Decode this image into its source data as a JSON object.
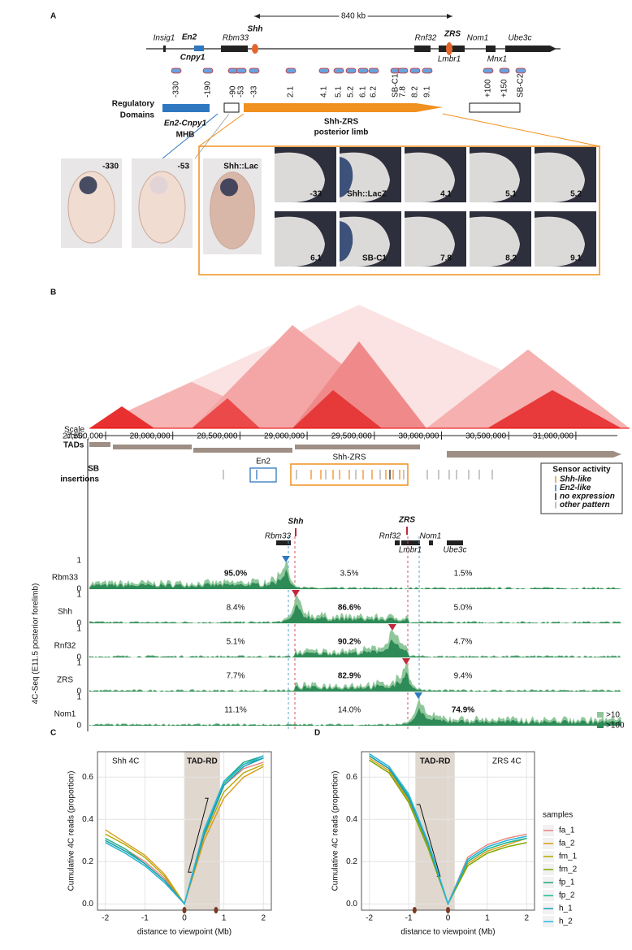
{
  "panel_a": {
    "letter": "A",
    "span": "840 kb",
    "genes": [
      "Insig1",
      "En2",
      "Cnpy1",
      "Rbm33",
      "Shh",
      "Rnf32",
      "ZRS",
      "Lmbr1",
      "Nom1",
      "Mnx1",
      "Ube3c"
    ],
    "insertions": [
      "-330",
      "-190",
      "-90",
      "-53",
      "-33",
      "2.1",
      "4.1",
      "5.1",
      "5.2",
      "6.1",
      "6.2",
      "SB-C1",
      "7.8",
      "8.2",
      "9.1",
      "+100",
      "+150",
      "SB-C2"
    ],
    "domains_label": [
      "Regulatory",
      "Domains"
    ],
    "en2_domain": [
      "En2-Cnpy1",
      "MHB"
    ],
    "shh_domain": [
      "Shh-ZRS",
      "posterior limb"
    ],
    "embryos": [
      "-330",
      "-53",
      "Shh::Lac"
    ],
    "limbs": [
      "-33",
      "Shh::LacZ",
      "4.1",
      "5.1",
      "5.2",
      "6.1",
      "SB-C1",
      "7.8",
      "8.2",
      "9.1"
    ]
  },
  "panel_b": {
    "letter": "B",
    "scale": "Scale",
    "chrom": "chr5:",
    "coords": [
      "27,500,000",
      "28,000,000",
      "28,500,000",
      "29,000,000",
      "29,500,000",
      "30,000,000",
      "30,500,000",
      "31,000,000"
    ],
    "tads": "TADs",
    "sb": [
      "SB",
      "insertions"
    ],
    "en2": "En2",
    "shh_zrs": "Shh-ZRS",
    "legend": {
      "title": "Sensor activity",
      "items": [
        "Shh-like",
        "En2-like",
        "no expression",
        "other pattern"
      ],
      "colors": [
        "#f0901e",
        "#2f78c0",
        "#222222",
        "#aaaaaa"
      ]
    },
    "genes": [
      "Shh",
      "ZRS",
      "Rbm33",
      "Rnf32",
      "Lmbr1",
      "Nom1",
      "Ube3c"
    ],
    "ylabel": "4C-Seq (E11.5 posterior forelimb)",
    "scale_top": "1",
    "scale_bottom": "0",
    "tracks": [
      {
        "name": "Rbm33",
        "pct": [
          "95.0%",
          "3.5%",
          "1.5%"
        ],
        "bold": 0
      },
      {
        "name": "Shh",
        "pct": [
          "8.4%",
          "86.6%",
          "5.0%"
        ],
        "bold": 1
      },
      {
        "name": "Rnf32",
        "pct": [
          "5.1%",
          "90.2%",
          "4.7%"
        ],
        "bold": 1
      },
      {
        "name": "ZRS",
        "pct": [
          "7.7%",
          "82.9%",
          "9.4%"
        ],
        "bold": 1
      },
      {
        "name": "Nom1",
        "pct": [
          "11.1%",
          "14.0%",
          "74.9%"
        ],
        "bold": 2
      }
    ],
    "signal_legend": [
      ">10",
      ">100"
    ]
  },
  "chart_data": [
    {
      "type": "line",
      "panel": "C",
      "annotation": "Shh 4C",
      "band": {
        "x": [
          0,
          0.9
        ],
        "label": "TAD-RD"
      },
      "markers": [
        0,
        0.8
      ],
      "xlabel": "distance to viewpoint (Mb)",
      "ylabel": "Cumulative 4C reads (proportion)",
      "x": [
        -2,
        -1.5,
        -1,
        -0.5,
        0,
        0.5,
        1,
        1.5,
        2
      ],
      "xlim": [
        -2.2,
        2.2
      ],
      "xticks": [
        -2,
        -1,
        0,
        1,
        2
      ],
      "ylim": [
        -0.03,
        0.72
      ],
      "yticks": [
        {
          "value": 0,
          "label": "0.0"
        },
        0.2,
        0.4,
        0.6
      ],
      "grid": true,
      "series": [
        {
          "color": "#e8837a",
          "values": [
            0.31,
            0.26,
            0.2,
            0.12,
            0,
            0.33,
            0.56,
            0.64,
            0.67
          ]
        },
        {
          "color": "#d89a1a",
          "values": [
            0.35,
            0.29,
            0.23,
            0.14,
            0,
            0.3,
            0.5,
            0.6,
            0.65
          ]
        },
        {
          "color": "#b5a800",
          "values": [
            0.33,
            0.28,
            0.22,
            0.13,
            0,
            0.32,
            0.53,
            0.62,
            0.66
          ]
        },
        {
          "color": "#7ea800",
          "values": [
            0.3,
            0.25,
            0.19,
            0.11,
            0,
            0.34,
            0.57,
            0.66,
            0.7
          ]
        },
        {
          "color": "#1aa37a",
          "values": [
            0.29,
            0.24,
            0.18,
            0.1,
            0,
            0.35,
            0.58,
            0.67,
            0.7
          ]
        },
        {
          "color": "#1db88e",
          "values": [
            0.31,
            0.26,
            0.19,
            0.11,
            0,
            0.34,
            0.57,
            0.66,
            0.69
          ]
        },
        {
          "color": "#1a9db5",
          "values": [
            0.3,
            0.25,
            0.19,
            0.11,
            0,
            0.33,
            0.56,
            0.65,
            0.69
          ]
        },
        {
          "color": "#29b6e0",
          "values": [
            0.29,
            0.24,
            0.18,
            0.1,
            0,
            0.35,
            0.58,
            0.66,
            0.7
          ]
        }
      ]
    },
    {
      "type": "line",
      "panel": "D",
      "annotation": "ZRS 4C",
      "band": {
        "x": [
          -0.83,
          0.17
        ],
        "label": "TAD-RD"
      },
      "markers": [
        0,
        -0.85
      ],
      "xlabel": "distance to viewpoint (Mb)",
      "ylabel": "Cumulative 4C reads (proportion)",
      "x": [
        -2,
        -1.5,
        -1,
        -0.5,
        0,
        0.5,
        1,
        1.5,
        2
      ],
      "xlim": [
        -2.2,
        2.2
      ],
      "xticks": [
        -2,
        -1,
        0,
        1,
        2
      ],
      "ylim": [
        -0.03,
        0.72
      ],
      "yticks": [
        {
          "value": 0,
          "label": "0.0"
        },
        0.2,
        0.4,
        0.6
      ],
      "grid": true,
      "legend_title": "samples",
      "series": [
        {
          "name": "fa_1",
          "color": "#e8837a",
          "values": [
            0.7,
            0.64,
            0.5,
            0.28,
            0,
            0.22,
            0.28,
            0.31,
            0.33
          ]
        },
        {
          "name": "fa_2",
          "color": "#d89a1a",
          "values": [
            0.69,
            0.63,
            0.49,
            0.27,
            0,
            0.19,
            0.25,
            0.28,
            0.31
          ]
        },
        {
          "name": "fm_1",
          "color": "#b5a800",
          "values": [
            0.68,
            0.62,
            0.48,
            0.27,
            0,
            0.18,
            0.24,
            0.27,
            0.29
          ]
        },
        {
          "name": "fm_2",
          "color": "#7ea800",
          "values": [
            0.68,
            0.62,
            0.48,
            0.26,
            0,
            0.18,
            0.24,
            0.27,
            0.29
          ]
        },
        {
          "name": "fp_1",
          "color": "#1aa37a",
          "values": [
            0.7,
            0.64,
            0.51,
            0.28,
            0,
            0.2,
            0.26,
            0.29,
            0.31
          ]
        },
        {
          "name": "fp_2",
          "color": "#1db88e",
          "values": [
            0.71,
            0.65,
            0.51,
            0.29,
            0,
            0.2,
            0.26,
            0.29,
            0.31
          ]
        },
        {
          "name": "h_1",
          "color": "#1a9db5",
          "values": [
            0.7,
            0.64,
            0.5,
            0.28,
            0,
            0.21,
            0.27,
            0.3,
            0.32
          ]
        },
        {
          "name": "h_2",
          "color": "#29b6e0",
          "values": [
            0.71,
            0.65,
            0.52,
            0.29,
            0,
            0.21,
            0.27,
            0.3,
            0.32
          ]
        }
      ]
    }
  ]
}
